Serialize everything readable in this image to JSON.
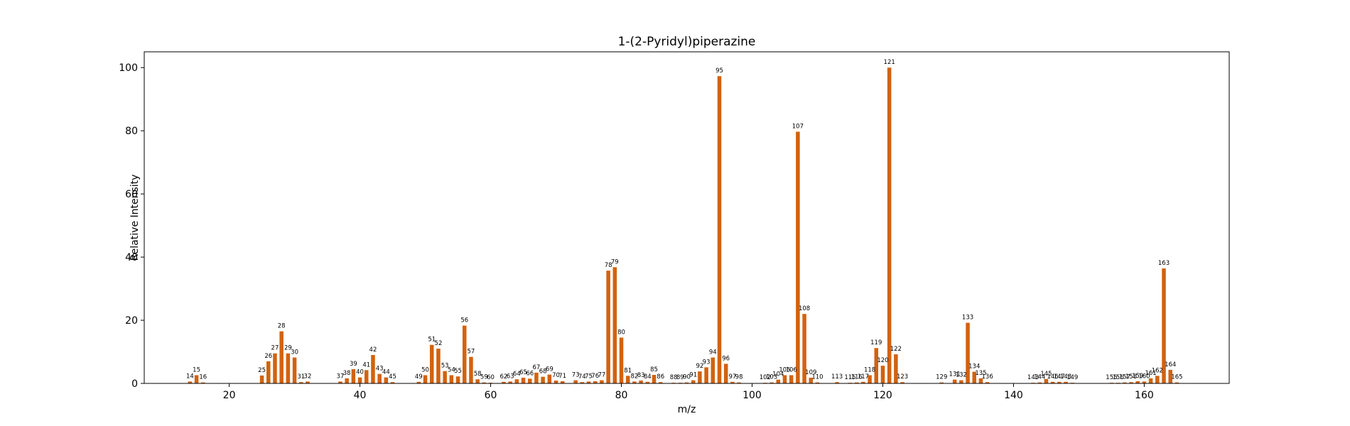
{
  "chart_data": {
    "type": "bar",
    "title": "1-(2-Pyridyl)piperazine",
    "xlabel": "m/z",
    "ylabel": "Relative Intensity",
    "xlim": [
      7,
      173
    ],
    "ylim": [
      0,
      105
    ],
    "xticks": [
      20,
      40,
      60,
      80,
      100,
      120,
      140,
      160
    ],
    "yticks": [
      0,
      20,
      40,
      60,
      80,
      100
    ],
    "bar_color": "#d2620f",
    "grid": false,
    "legend": "none",
    "points": [
      {
        "x": 14,
        "y": 0.6
      },
      {
        "x": 15,
        "y": 2.6
      },
      {
        "x": 16,
        "y": 0.3
      },
      {
        "x": 25,
        "y": 2.5
      },
      {
        "x": 26,
        "y": 7.0
      },
      {
        "x": 27,
        "y": 9.5
      },
      {
        "x": 28,
        "y": 16.5
      },
      {
        "x": 29,
        "y": 9.5
      },
      {
        "x": 30,
        "y": 8.2
      },
      {
        "x": 31,
        "y": 0.4
      },
      {
        "x": 32,
        "y": 0.6
      },
      {
        "x": 37,
        "y": 0.6
      },
      {
        "x": 38,
        "y": 1.6
      },
      {
        "x": 39,
        "y": 4.5
      },
      {
        "x": 40,
        "y": 1.9
      },
      {
        "x": 41,
        "y": 4.2
      },
      {
        "x": 42,
        "y": 9.0
      },
      {
        "x": 43,
        "y": 3.0
      },
      {
        "x": 44,
        "y": 1.9
      },
      {
        "x": 45,
        "y": 0.4
      },
      {
        "x": 49,
        "y": 0.5
      },
      {
        "x": 50,
        "y": 2.6
      },
      {
        "x": 51,
        "y": 12.2
      },
      {
        "x": 52,
        "y": 11.0
      },
      {
        "x": 53,
        "y": 3.9
      },
      {
        "x": 54,
        "y": 2.6
      },
      {
        "x": 55,
        "y": 2.2
      },
      {
        "x": 56,
        "y": 18.3
      },
      {
        "x": 57,
        "y": 8.4
      },
      {
        "x": 58,
        "y": 1.3
      },
      {
        "x": 59,
        "y": 0.3
      },
      {
        "x": 60,
        "y": 0.2
      },
      {
        "x": 62,
        "y": 0.5
      },
      {
        "x": 63,
        "y": 0.6
      },
      {
        "x": 64,
        "y": 1.3
      },
      {
        "x": 65,
        "y": 1.8
      },
      {
        "x": 66,
        "y": 1.5
      },
      {
        "x": 67,
        "y": 3.4
      },
      {
        "x": 68,
        "y": 2.1
      },
      {
        "x": 69,
        "y": 2.8
      },
      {
        "x": 70,
        "y": 0.9
      },
      {
        "x": 71,
        "y": 0.7
      },
      {
        "x": 73,
        "y": 1.0
      },
      {
        "x": 74,
        "y": 0.4
      },
      {
        "x": 75,
        "y": 0.6
      },
      {
        "x": 76,
        "y": 0.7
      },
      {
        "x": 77,
        "y": 1.0
      },
      {
        "x": 78,
        "y": 35.7
      },
      {
        "x": 79,
        "y": 36.8
      },
      {
        "x": 80,
        "y": 14.5
      },
      {
        "x": 81,
        "y": 2.4
      },
      {
        "x": 82,
        "y": 0.6
      },
      {
        "x": 83,
        "y": 0.9
      },
      {
        "x": 84,
        "y": 0.5
      },
      {
        "x": 85,
        "y": 2.7
      },
      {
        "x": 86,
        "y": 0.4
      },
      {
        "x": 88,
        "y": 0.2
      },
      {
        "x": 89,
        "y": 0.2
      },
      {
        "x": 90,
        "y": 0.3
      },
      {
        "x": 91,
        "y": 1.0
      },
      {
        "x": 92,
        "y": 3.8
      },
      {
        "x": 93,
        "y": 5.1
      },
      {
        "x": 94,
        "y": 8.2
      },
      {
        "x": 95,
        "y": 97.3
      },
      {
        "x": 96,
        "y": 6.2
      },
      {
        "x": 97,
        "y": 0.5
      },
      {
        "x": 98,
        "y": 0.3
      },
      {
        "x": 102,
        "y": 0.2
      },
      {
        "x": 103,
        "y": 0.3
      },
      {
        "x": 104,
        "y": 1.2
      },
      {
        "x": 105,
        "y": 2.6
      },
      {
        "x": 106,
        "y": 2.6
      },
      {
        "x": 107,
        "y": 79.7
      },
      {
        "x": 108,
        "y": 22.0
      },
      {
        "x": 109,
        "y": 1.8
      },
      {
        "x": 110,
        "y": 0.3
      },
      {
        "x": 113,
        "y": 0.4
      },
      {
        "x": 115,
        "y": 0.2
      },
      {
        "x": 116,
        "y": 0.3
      },
      {
        "x": 117,
        "y": 0.5
      },
      {
        "x": 118,
        "y": 2.6
      },
      {
        "x": 119,
        "y": 11.2
      },
      {
        "x": 120,
        "y": 5.6
      },
      {
        "x": 121,
        "y": 100.0
      },
      {
        "x": 122,
        "y": 9.2
      },
      {
        "x": 123,
        "y": 0.4
      },
      {
        "x": 129,
        "y": 0.3
      },
      {
        "x": 131,
        "y": 1.2
      },
      {
        "x": 132,
        "y": 1.0
      },
      {
        "x": 133,
        "y": 19.2
      },
      {
        "x": 134,
        "y": 3.7
      },
      {
        "x": 135,
        "y": 1.6
      },
      {
        "x": 136,
        "y": 0.4
      },
      {
        "x": 143,
        "y": 0.2
      },
      {
        "x": 144,
        "y": 0.3
      },
      {
        "x": 145,
        "y": 1.4
      },
      {
        "x": 146,
        "y": 0.5
      },
      {
        "x": 147,
        "y": 0.5
      },
      {
        "x": 148,
        "y": 0.5
      },
      {
        "x": 149,
        "y": 0.2
      },
      {
        "x": 155,
        "y": 0.2
      },
      {
        "x": 156,
        "y": 0.2
      },
      {
        "x": 157,
        "y": 0.3
      },
      {
        "x": 158,
        "y": 0.4
      },
      {
        "x": 159,
        "y": 0.7
      },
      {
        "x": 160,
        "y": 0.6
      },
      {
        "x": 161,
        "y": 1.6
      },
      {
        "x": 162,
        "y": 2.4
      },
      {
        "x": 163,
        "y": 36.4
      },
      {
        "x": 164,
        "y": 4.3
      },
      {
        "x": 165,
        "y": 0.3
      }
    ]
  }
}
